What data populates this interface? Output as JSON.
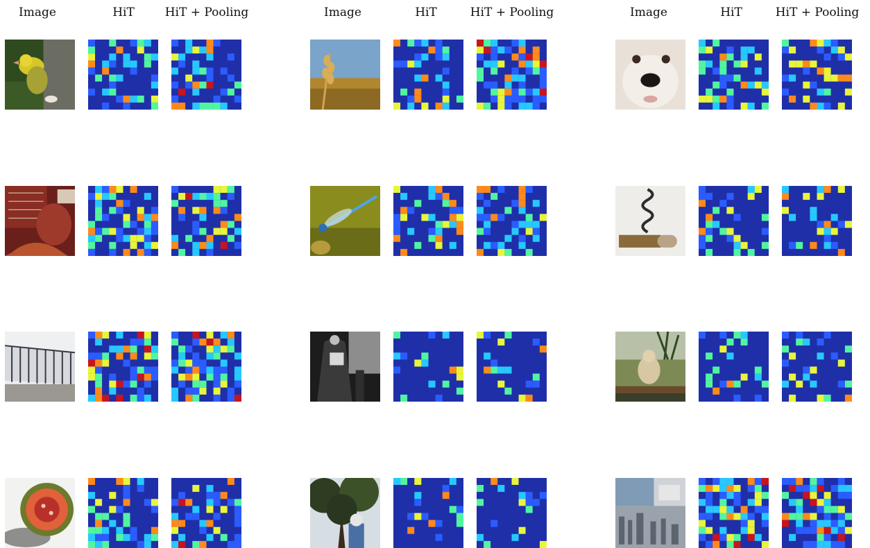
{
  "headers": [
    "Image",
    "HiT",
    "HiT + Pooling"
  ],
  "palette": {
    "heat_background": "#2a35b8",
    "heat_stops": [
      "#1f2fa8",
      "#2b5cff",
      "#27c8ff",
      "#51f5a0",
      "#e8f53a",
      "#ff8a1a",
      "#c8141e"
    ]
  },
  "groups": [
    {
      "rows": [
        {
          "subject": "yellow bird",
          "hit_level": [
            0.05,
            0.55
          ],
          "pool_level": [
            0.08,
            0.5
          ]
        },
        {
          "subject": "red cloth on chair",
          "hit_level": [
            0.1,
            0.6
          ],
          "pool_level": [
            0.1,
            0.6
          ]
        },
        {
          "subject": "metal fence",
          "hit_level": [
            0.15,
            0.55
          ],
          "pool_level": [
            0.2,
            0.65
          ]
        },
        {
          "subject": "fig fruit",
          "hit_level": [
            0.05,
            0.45
          ],
          "pool_level": [
            0.1,
            0.55
          ]
        }
      ]
    },
    {
      "rows": [
        {
          "subject": "wheat ear",
          "hit_level": [
            0.05,
            0.5
          ],
          "pool_level": [
            0.15,
            0.65
          ]
        },
        {
          "subject": "blue dragonfly",
          "hit_level": [
            0.05,
            0.5
          ],
          "pool_level": [
            0.05,
            0.5
          ]
        },
        {
          "subject": "accordion player",
          "hit_level": [
            0.02,
            0.3
          ],
          "pool_level": [
            0.02,
            0.3
          ]
        },
        {
          "subject": "tree and statue",
          "hit_level": [
            0.02,
            0.3
          ],
          "pool_level": [
            0.02,
            0.25
          ]
        }
      ]
    },
    {
      "rows": [
        {
          "subject": "white dog face",
          "hit_level": [
            0.05,
            0.5
          ],
          "pool_level": [
            0.08,
            0.55
          ]
        },
        {
          "subject": "corkscrew",
          "hit_level": [
            0.02,
            0.35
          ],
          "pool_level": [
            0.02,
            0.35
          ]
        },
        {
          "subject": "monkey on branch",
          "hit_level": [
            0.02,
            0.35
          ],
          "pool_level": [
            0.02,
            0.4
          ]
        },
        {
          "subject": "puzzle city",
          "hit_level": [
            0.15,
            0.65
          ],
          "pool_level": [
            0.15,
            0.7
          ]
        }
      ]
    }
  ]
}
